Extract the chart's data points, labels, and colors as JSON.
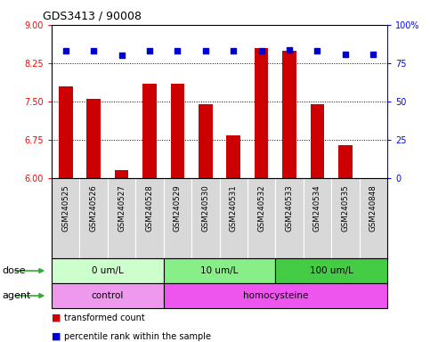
{
  "title": "GDS3413 / 90008",
  "samples": [
    "GSM240525",
    "GSM240526",
    "GSM240527",
    "GSM240528",
    "GSM240529",
    "GSM240530",
    "GSM240531",
    "GSM240532",
    "GSM240533",
    "GSM240534",
    "GSM240535",
    "GSM240848"
  ],
  "transformed_counts": [
    7.8,
    7.55,
    6.15,
    7.85,
    7.85,
    7.45,
    6.83,
    8.55,
    8.5,
    7.45,
    6.65,
    6.0
  ],
  "percentile_ranks": [
    83,
    83,
    80,
    83,
    83,
    83,
    83,
    83,
    84,
    83,
    81,
    81
  ],
  "ylim_left": [
    6,
    9
  ],
  "ylim_right": [
    0,
    100
  ],
  "yticks_left": [
    6,
    6.75,
    7.5,
    8.25,
    9
  ],
  "yticks_right": [
    0,
    25,
    50,
    75,
    100
  ],
  "bar_color": "#cc0000",
  "dot_color": "#0000cc",
  "dose_groups": [
    {
      "label": "0 um/L",
      "start": 0,
      "end": 4,
      "color": "#ccffcc"
    },
    {
      "label": "10 um/L",
      "start": 4,
      "end": 8,
      "color": "#88ee88"
    },
    {
      "label": "100 um/L",
      "start": 8,
      "end": 12,
      "color": "#44cc44"
    }
  ],
  "agent_groups": [
    {
      "label": "control",
      "start": 0,
      "end": 4,
      "color": "#ee99ee"
    },
    {
      "label": "homocysteine",
      "start": 4,
      "end": 12,
      "color": "#ee55ee"
    }
  ],
  "legend_bar_label": "transformed count",
  "legend_dot_label": "percentile rank within the sample",
  "label_bg": "#d8d8d8",
  "grid_lines": [
    6.75,
    7.5,
    8.25
  ],
  "arrow_color": "#33aa33"
}
